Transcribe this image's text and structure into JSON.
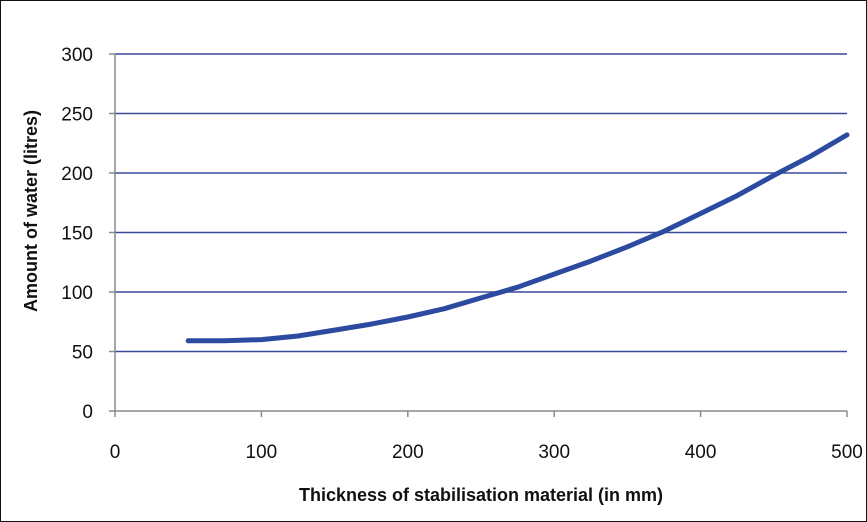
{
  "chart_data": {
    "type": "line",
    "title": "",
    "xlabel": "Thickness of stabilisation material (in mm)",
    "ylabel": "Amount of water (litres)",
    "xlim": [
      0,
      500
    ],
    "ylim": [
      0,
      300
    ],
    "x_ticks": [
      "0",
      "100",
      "200",
      "300",
      "400",
      "500"
    ],
    "y_ticks": [
      "0",
      "50",
      "100",
      "150",
      "200",
      "250",
      "300"
    ],
    "grid": "horizontal",
    "legend": "none",
    "series": [
      {
        "color": "#2b4aa0",
        "x": [
          50,
          75,
          100,
          125,
          150,
          175,
          200,
          225,
          250,
          275,
          300,
          325,
          350,
          375,
          400,
          425,
          450,
          475,
          500
        ],
        "y": [
          59,
          59,
          60,
          63,
          68,
          73,
          79,
          86,
          95,
          104,
          115,
          126,
          138,
          151,
          166,
          181,
          198,
          214,
          232
        ]
      }
    ]
  },
  "colors": {
    "line": "#2b4aa0",
    "grid": "#3a4a9a",
    "axis": "#8a8a8a"
  }
}
